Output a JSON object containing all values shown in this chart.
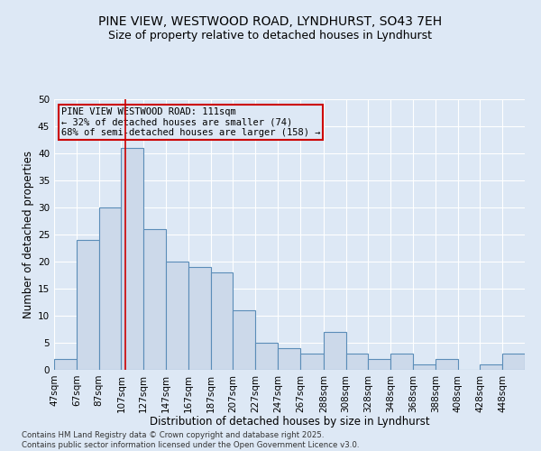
{
  "title_line1": "PINE VIEW, WESTWOOD ROAD, LYNDHURST, SO43 7EH",
  "title_line2": "Size of property relative to detached houses in Lyndhurst",
  "xlabel": "Distribution of detached houses by size in Lyndhurst",
  "ylabel": "Number of detached properties",
  "annotation_line1": "PINE VIEW WESTWOOD ROAD: 111sqm",
  "annotation_line2": "← 32% of detached houses are smaller (74)",
  "annotation_line3": "68% of semi-detached houses are larger (158) →",
  "property_line_x": 111,
  "categories": [
    "47sqm",
    "67sqm",
    "87sqm",
    "107sqm",
    "127sqm",
    "147sqm",
    "167sqm",
    "187sqm",
    "207sqm",
    "227sqm",
    "247sqm",
    "267sqm",
    "288sqm",
    "308sqm",
    "328sqm",
    "348sqm",
    "368sqm",
    "388sqm",
    "408sqm",
    "428sqm",
    "448sqm"
  ],
  "bar_edges": [
    47,
    67,
    87,
    107,
    127,
    147,
    167,
    187,
    207,
    227,
    247,
    267,
    288,
    308,
    328,
    348,
    368,
    388,
    408,
    428,
    448,
    468
  ],
  "values": [
    2,
    24,
    30,
    41,
    26,
    20,
    19,
    18,
    11,
    5,
    4,
    3,
    7,
    3,
    2,
    3,
    1,
    2,
    0,
    1,
    3
  ],
  "bar_color": "#ccd9ea",
  "bar_edge_color": "#5b8db8",
  "vline_color": "#cc0000",
  "background_color": "#dde8f5",
  "grid_color": "#ffffff",
  "annotation_box_color": "#cc0000",
  "ylim": [
    0,
    50
  ],
  "yticks": [
    0,
    5,
    10,
    15,
    20,
    25,
    30,
    35,
    40,
    45,
    50
  ],
  "footer": "Contains HM Land Registry data © Crown copyright and database right 2025.\nContains public sector information licensed under the Open Government Licence v3.0.",
  "title_fontsize": 10,
  "subtitle_fontsize": 9,
  "axis_label_fontsize": 8.5,
  "tick_fontsize": 7.5,
  "annotation_fontsize": 7.5
}
